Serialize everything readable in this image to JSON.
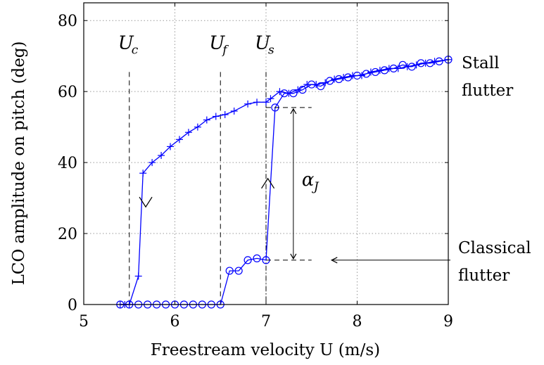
{
  "chart_data": {
    "type": "line",
    "xlabel": "Freestream velocity U (m/s)",
    "ylabel": "LCO amplitude on pitch (deg)",
    "xlim": [
      5,
      9
    ],
    "ylim": [
      0,
      85
    ],
    "xticks": [
      "5",
      "6",
      "7",
      "8",
      "9"
    ],
    "yticks": [
      "0",
      "20",
      "40",
      "60",
      "80"
    ],
    "grid": true,
    "series": [
      {
        "marker": "plus",
        "color": "#0000ff",
        "x": [
          5.4,
          5.45,
          5.5,
          5.6,
          5.65,
          5.75,
          5.85,
          5.95,
          6.05,
          6.15,
          6.25,
          6.35,
          6.45,
          6.55,
          6.65,
          6.8,
          6.9,
          7.0,
          7.05,
          7.15,
          7.25,
          7.35,
          7.45,
          7.55,
          7.65,
          7.75,
          7.85,
          7.95,
          8.05,
          8.15,
          8.25,
          8.35,
          8.45,
          8.55,
          8.65,
          8.75,
          8.85,
          9.0
        ],
        "y": [
          0,
          0,
          0,
          8,
          37,
          40,
          42,
          44.5,
          46.5,
          48.5,
          50,
          52,
          53,
          53.5,
          54.5,
          56.5,
          57,
          57,
          58,
          60,
          59.5,
          60.5,
          62,
          62,
          62.5,
          63.5,
          64,
          64.5,
          64.5,
          65.5,
          66,
          66.5,
          66.5,
          67,
          67.5,
          68,
          68.5,
          69
        ]
      },
      {
        "marker": "circle",
        "color": "#0000ff",
        "x": [
          5.4,
          5.5,
          5.6,
          5.7,
          5.8,
          5.9,
          6.0,
          6.1,
          6.2,
          6.3,
          6.4,
          6.5,
          6.6,
          6.7,
          6.8,
          6.9,
          7.0,
          7.1,
          7.2,
          7.3,
          7.4,
          7.5,
          7.6,
          7.7,
          7.8,
          7.9,
          8.0,
          8.1,
          8.2,
          8.3,
          8.4,
          8.5,
          8.6,
          8.7,
          8.8,
          8.9,
          9.0
        ],
        "y": [
          0,
          0,
          0,
          0,
          0,
          0,
          0,
          0,
          0,
          0,
          0,
          0,
          9.5,
          9.5,
          12.5,
          13,
          12.5,
          55.5,
          59.5,
          59.5,
          60.5,
          62,
          61.5,
          63,
          63.5,
          64,
          64.5,
          65,
          65.5,
          66,
          66.5,
          67.5,
          67,
          68,
          68,
          68.5,
          69
        ]
      }
    ],
    "vlines": [
      {
        "label": "U",
        "subscript": "c",
        "x": 5.5
      },
      {
        "label": "U",
        "subscript": "f",
        "x": 6.5
      },
      {
        "label": "U",
        "subscript": "s",
        "x": 7.0
      }
    ],
    "jump": {
      "label": "α",
      "subscript": "J",
      "x": 7.3,
      "y_low": 12.5,
      "y_high": 55.5
    },
    "annotations": {
      "stall_line1": "Stall",
      "stall_line2": "flutter",
      "classical_line1": "Classical",
      "classical_line2": "flutter"
    }
  }
}
